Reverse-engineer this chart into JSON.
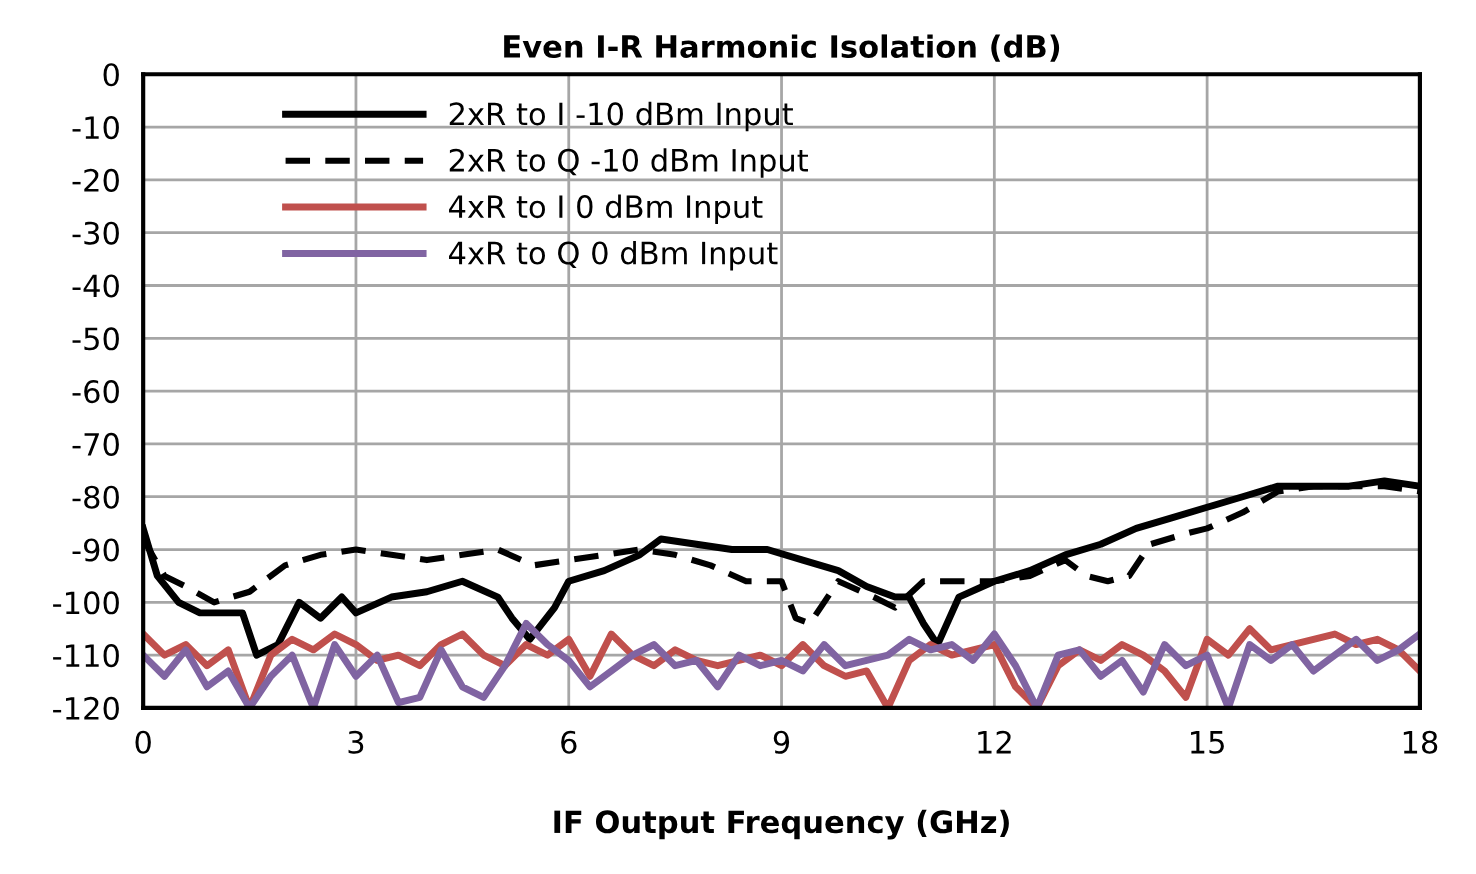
{
  "chart_data": {
    "type": "line",
    "title": "Even I-R Harmonic Isolation (dB)",
    "xlabel": "IF Output Frequency (GHz)",
    "xlim": [
      0,
      18
    ],
    "xticks": [
      0,
      3,
      6,
      9,
      12,
      15,
      18
    ],
    "ylim": [
      -120,
      0
    ],
    "yticks": [
      -120,
      -110,
      -100,
      -90,
      -80,
      -70,
      -60,
      -50,
      -40,
      -30,
      -20,
      -10,
      0
    ],
    "grid": true,
    "legend": "top left",
    "series": [
      {
        "name": "2xR to I -10 dBm Input",
        "color": "#000000",
        "line_style": "solid",
        "x": [
          0,
          0.2,
          0.5,
          0.8,
          1.0,
          1.4,
          1.6,
          1.9,
          2.2,
          2.5,
          2.8,
          3.0,
          3.5,
          4.0,
          4.5,
          5.0,
          5.2,
          5.45,
          5.8,
          6.0,
          6.5,
          7.0,
          7.3,
          7.8,
          8.3,
          8.8,
          9.3,
          9.8,
          10.2,
          10.6,
          10.8,
          11.0,
          11.2,
          11.5,
          12.0,
          12.5,
          13.0,
          13.5,
          14.0,
          14.5,
          15.0,
          15.5,
          16.0,
          16.5,
          17.0,
          17.5,
          18.0
        ],
        "values": [
          -86,
          -95,
          -100,
          -102,
          -102,
          -102,
          -110,
          -108,
          -100,
          -103,
          -99,
          -102,
          -99,
          -98,
          -96,
          -99,
          -103,
          -107,
          -101,
          -96,
          -94,
          -91,
          -88,
          -89,
          -90,
          -90,
          -92,
          -94,
          -97,
          -99,
          -99,
          -104,
          -108,
          -99,
          -96,
          -94,
          -91,
          -89,
          -86,
          -84,
          -82,
          -80,
          -78,
          -78,
          -78,
          -77,
          -78
        ]
      },
      {
        "name": "2xR to Q -10 dBm Input",
        "color": "#000000",
        "line_style": "dashed",
        "x": [
          0,
          0.3,
          0.6,
          1.0,
          1.5,
          2.0,
          2.5,
          3.0,
          3.5,
          4.0,
          4.5,
          5.0,
          5.5,
          6.0,
          6.5,
          7.0,
          7.5,
          8.0,
          8.5,
          9.0,
          9.2,
          9.4,
          9.6,
          9.8,
          10.3,
          10.6,
          11.0,
          11.5,
          12.0,
          12.5,
          13.0,
          13.3,
          13.6,
          13.9,
          14.2,
          14.7,
          15.0,
          15.5,
          16.0,
          16.5,
          17.0,
          17.5,
          18.0
        ],
        "values": [
          -88,
          -95,
          -97,
          -100,
          -98,
          -93,
          -91,
          -90,
          -91,
          -92,
          -91,
          -90,
          -93,
          -92,
          -91,
          -90,
          -91,
          -93,
          -96,
          -96,
          -103,
          -104,
          -100,
          -96,
          -99,
          -101,
          -96,
          -96,
          -96,
          -95,
          -92,
          -95,
          -96,
          -95,
          -89,
          -87,
          -86,
          -83,
          -79,
          -78,
          -78,
          -78,
          -79
        ]
      },
      {
        "name": "4xR to I 0 dBm Input",
        "color": "#c0504d",
        "line_style": "solid",
        "x": [
          0,
          0.3,
          0.6,
          0.9,
          1.2,
          1.5,
          1.8,
          2.1,
          2.4,
          2.7,
          3.0,
          3.3,
          3.6,
          3.9,
          4.2,
          4.5,
          4.8,
          5.1,
          5.4,
          5.7,
          6.0,
          6.3,
          6.6,
          6.9,
          7.2,
          7.5,
          7.8,
          8.1,
          8.4,
          8.7,
          9.0,
          9.3,
          9.6,
          9.9,
          10.2,
          10.5,
          10.8,
          11.1,
          11.4,
          11.7,
          12.0,
          12.3,
          12.6,
          12.9,
          13.2,
          13.5,
          13.8,
          14.1,
          14.4,
          14.7,
          15.0,
          15.3,
          15.6,
          15.9,
          16.2,
          16.5,
          16.8,
          17.1,
          17.4,
          17.7,
          18.0
        ],
        "values": [
          -106,
          -110,
          -108,
          -112,
          -109,
          -120,
          -110,
          -107,
          -109,
          -106,
          -108,
          -111,
          -110,
          -112,
          -108,
          -106,
          -110,
          -112,
          -108,
          -110,
          -107,
          -114,
          -106,
          -110,
          -112,
          -109,
          -111,
          -112,
          -111,
          -110,
          -112,
          -108,
          -112,
          -114,
          -113,
          -120,
          -111,
          -108,
          -110,
          -109,
          -108,
          -116,
          -120,
          -112,
          -109,
          -111,
          -108,
          -110,
          -113,
          -118,
          -107,
          -110,
          -105,
          -109,
          -108,
          -107,
          -106,
          -108,
          -107,
          -109,
          -113
        ]
      },
      {
        "name": "4xR to Q 0 dBm Input",
        "color": "#8064a2",
        "line_style": "solid",
        "x": [
          0,
          0.3,
          0.6,
          0.9,
          1.2,
          1.5,
          1.8,
          2.1,
          2.4,
          2.7,
          3.0,
          3.3,
          3.6,
          3.9,
          4.2,
          4.5,
          4.8,
          5.1,
          5.4,
          5.7,
          6.0,
          6.3,
          6.6,
          6.9,
          7.2,
          7.5,
          7.8,
          8.1,
          8.4,
          8.7,
          9.0,
          9.3,
          9.6,
          9.9,
          10.2,
          10.5,
          10.8,
          11.1,
          11.4,
          11.7,
          12.0,
          12.3,
          12.6,
          12.9,
          13.2,
          13.5,
          13.8,
          14.1,
          14.4,
          14.7,
          15.0,
          15.3,
          15.6,
          15.9,
          16.2,
          16.5,
          16.8,
          17.1,
          17.4,
          17.7,
          18.0
        ],
        "values": [
          -110,
          -114,
          -109,
          -116,
          -113,
          -120,
          -114,
          -110,
          -120,
          -108,
          -114,
          -110,
          -119,
          -118,
          -109,
          -116,
          -118,
          -112,
          -104,
          -108,
          -111,
          -116,
          -113,
          -110,
          -108,
          -112,
          -111,
          -116,
          -110,
          -112,
          -111,
          -113,
          -108,
          -112,
          -111,
          -110,
          -107,
          -109,
          -108,
          -111,
          -106,
          -112,
          -120,
          -110,
          -109,
          -114,
          -111,
          -117,
          -108,
          -112,
          -110,
          -120,
          -108,
          -111,
          -108,
          -113,
          -110,
          -107,
          -111,
          -109,
          -106
        ]
      }
    ]
  }
}
